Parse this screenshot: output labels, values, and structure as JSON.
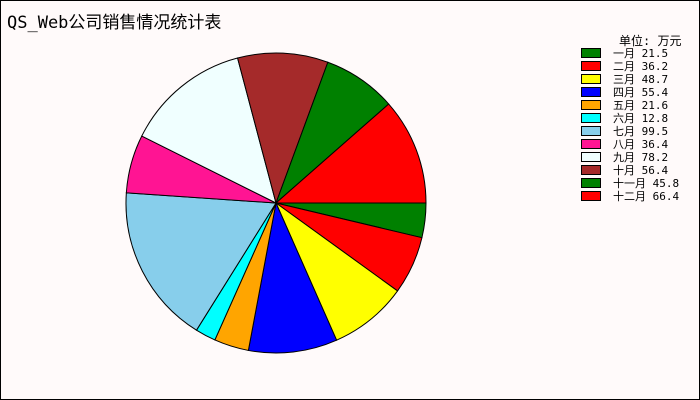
{
  "chart_data": {
    "type": "pie",
    "title": "QS_Web公司销售情况统计表",
    "unit_label": "单位: 万元",
    "start_angle": 0,
    "direction": "clockwise",
    "slices": [
      {
        "label": "一月",
        "value": 21.5,
        "color": "#008000"
      },
      {
        "label": "二月",
        "value": 36.2,
        "color": "#ff0000"
      },
      {
        "label": "三月",
        "value": 48.7,
        "color": "#ffff00"
      },
      {
        "label": "四月",
        "value": 55.4,
        "color": "#0000ff"
      },
      {
        "label": "五月",
        "value": 21.6,
        "color": "#ffa500"
      },
      {
        "label": "六月",
        "value": 12.8,
        "color": "#00ffff"
      },
      {
        "label": "七月",
        "value": 99.5,
        "color": "#87ceeb"
      },
      {
        "label": "八月",
        "value": 36.4,
        "color": "#ff1493"
      },
      {
        "label": "九月",
        "value": 78.2,
        "color": "#f0ffff"
      },
      {
        "label": "十月",
        "value": 56.4,
        "color": "#a52a2a"
      },
      {
        "label": "十一月",
        "value": 45.8,
        "color": "#008000"
      },
      {
        "label": "十二月",
        "value": 66.4,
        "color": "#ff0000"
      }
    ]
  }
}
